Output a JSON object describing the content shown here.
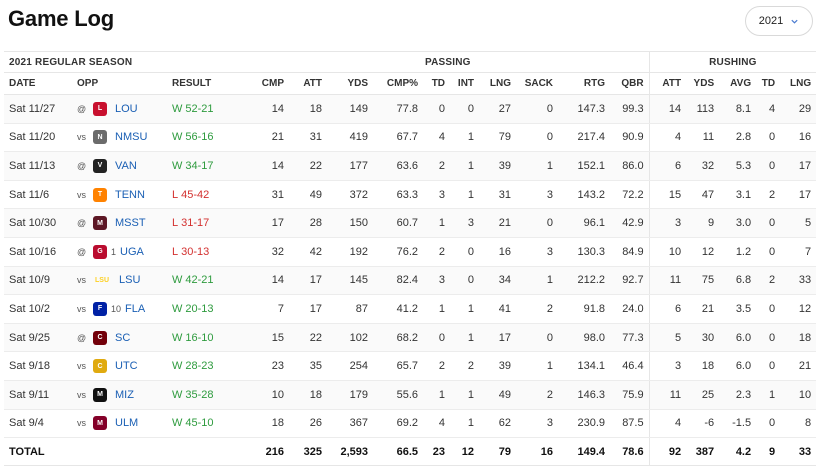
{
  "page": {
    "title": "Game Log",
    "season_select": "2021"
  },
  "table": {
    "section_label": "2021 REGULAR SEASON",
    "group_passing": "PASSING",
    "group_rushing": "RUSHING",
    "columns": {
      "date": "DATE",
      "opp": "OPP",
      "result": "RESULT",
      "cmp": "CMP",
      "att": "ATT",
      "yds": "YDS",
      "cmp_pct": "CMP%",
      "td": "TD",
      "int": "INT",
      "lng": "LNG",
      "sack": "SACK",
      "rtg": "RTG",
      "qbr": "QBR",
      "r_att": "ATT",
      "r_yds": "YDS",
      "r_avg": "AVG",
      "r_td": "TD",
      "r_lng": "LNG"
    },
    "rows": [
      {
        "date": "Sat 11/27",
        "prefix": "@",
        "rank": "",
        "opp": "LOU",
        "logo_color": "#c8102e",
        "logo_text": "L",
        "wl": "W",
        "score": "52-21",
        "cmp": "14",
        "att": "18",
        "yds": "149",
        "pct": "77.8",
        "td": "0",
        "int": "0",
        "lng": "27",
        "sack": "0",
        "rtg": "147.3",
        "qbr": "99.3",
        "ratt": "14",
        "ryds": "113",
        "ravg": "8.1",
        "rtd": "4",
        "rlng": "29"
      },
      {
        "date": "Sat 11/20",
        "prefix": "vs",
        "rank": "",
        "opp": "NMSU",
        "logo_color": "#6b6b6b",
        "logo_text": "N",
        "wl": "W",
        "score": "56-16",
        "cmp": "21",
        "att": "31",
        "yds": "419",
        "pct": "67.7",
        "td": "4",
        "int": "1",
        "lng": "79",
        "sack": "0",
        "rtg": "217.4",
        "qbr": "90.9",
        "ratt": "4",
        "ryds": "11",
        "ravg": "2.8",
        "rtd": "0",
        "rlng": "16"
      },
      {
        "date": "Sat 11/13",
        "prefix": "@",
        "rank": "",
        "opp": "VAN",
        "logo_color": "#222222",
        "logo_text": "V",
        "wl": "W",
        "score": "34-17",
        "cmp": "14",
        "att": "22",
        "yds": "177",
        "pct": "63.6",
        "td": "2",
        "int": "1",
        "lng": "39",
        "sack": "1",
        "rtg": "152.1",
        "qbr": "86.0",
        "ratt": "6",
        "ryds": "32",
        "ravg": "5.3",
        "rtd": "0",
        "rlng": "17"
      },
      {
        "date": "Sat 11/6",
        "prefix": "vs",
        "rank": "",
        "opp": "TENN",
        "logo_color": "#ff8200",
        "logo_text": "T",
        "wl": "L",
        "score": "45-42",
        "cmp": "31",
        "att": "49",
        "yds": "372",
        "pct": "63.3",
        "td": "3",
        "int": "1",
        "lng": "31",
        "sack": "3",
        "rtg": "143.2",
        "qbr": "72.2",
        "ratt": "15",
        "ryds": "47",
        "ravg": "3.1",
        "rtd": "2",
        "rlng": "17"
      },
      {
        "date": "Sat 10/30",
        "prefix": "@",
        "rank": "",
        "opp": "MSST",
        "logo_color": "#5d1725",
        "logo_text": "M",
        "wl": "L",
        "score": "31-17",
        "cmp": "17",
        "att": "28",
        "yds": "150",
        "pct": "60.7",
        "td": "1",
        "int": "3",
        "lng": "21",
        "sack": "0",
        "rtg": "96.1",
        "qbr": "42.9",
        "ratt": "3",
        "ryds": "9",
        "ravg": "3.0",
        "rtd": "0",
        "rlng": "5"
      },
      {
        "date": "Sat 10/16",
        "prefix": "@",
        "rank": "1",
        "opp": "UGA",
        "logo_color": "#ba0c2f",
        "logo_text": "G",
        "wl": "L",
        "score": "30-13",
        "cmp": "32",
        "att": "42",
        "yds": "192",
        "pct": "76.2",
        "td": "2",
        "int": "0",
        "lng": "16",
        "sack": "3",
        "rtg": "130.3",
        "qbr": "84.9",
        "ratt": "10",
        "ryds": "12",
        "ravg": "1.2",
        "rtd": "0",
        "rlng": "7"
      },
      {
        "date": "Sat 10/9",
        "prefix": "vs",
        "rank": "",
        "opp": "LSU",
        "logo_color": "#fdd023",
        "logo_text": "LSU",
        "wl": "W",
        "score": "42-21",
        "cmp": "14",
        "att": "17",
        "yds": "145",
        "pct": "82.4",
        "td": "3",
        "int": "0",
        "lng": "34",
        "sack": "1",
        "rtg": "212.2",
        "qbr": "92.7",
        "ratt": "11",
        "ryds": "75",
        "ravg": "6.8",
        "rtd": "2",
        "rlng": "33"
      },
      {
        "date": "Sat 10/2",
        "prefix": "vs",
        "rank": "10",
        "opp": "FLA",
        "logo_color": "#0021a5",
        "logo_text": "F",
        "wl": "W",
        "score": "20-13",
        "cmp": "7",
        "att": "17",
        "yds": "87",
        "pct": "41.2",
        "td": "1",
        "int": "1",
        "lng": "41",
        "sack": "2",
        "rtg": "91.8",
        "qbr": "24.0",
        "ratt": "6",
        "ryds": "21",
        "ravg": "3.5",
        "rtd": "0",
        "rlng": "12"
      },
      {
        "date": "Sat 9/25",
        "prefix": "@",
        "rank": "",
        "opp": "SC",
        "logo_color": "#73000a",
        "logo_text": "C",
        "wl": "W",
        "score": "16-10",
        "cmp": "15",
        "att": "22",
        "yds": "102",
        "pct": "68.2",
        "td": "0",
        "int": "1",
        "lng": "17",
        "sack": "0",
        "rtg": "98.0",
        "qbr": "77.3",
        "ratt": "5",
        "ryds": "30",
        "ravg": "6.0",
        "rtd": "0",
        "rlng": "18"
      },
      {
        "date": "Sat 9/18",
        "prefix": "vs",
        "rank": "",
        "opp": "UTC",
        "logo_color": "#e0aa0f",
        "logo_text": "C",
        "wl": "W",
        "score": "28-23",
        "cmp": "23",
        "att": "35",
        "yds": "254",
        "pct": "65.7",
        "td": "2",
        "int": "2",
        "lng": "39",
        "sack": "1",
        "rtg": "134.1",
        "qbr": "46.4",
        "ratt": "3",
        "ryds": "18",
        "ravg": "6.0",
        "rtd": "0",
        "rlng": "21"
      },
      {
        "date": "Sat 9/11",
        "prefix": "vs",
        "rank": "",
        "opp": "MIZ",
        "logo_color": "#111111",
        "logo_text": "M",
        "wl": "W",
        "score": "35-28",
        "cmp": "10",
        "att": "18",
        "yds": "179",
        "pct": "55.6",
        "td": "1",
        "int": "1",
        "lng": "49",
        "sack": "2",
        "rtg": "146.3",
        "qbr": "75.9",
        "ratt": "11",
        "ryds": "25",
        "ravg": "2.3",
        "rtd": "1",
        "rlng": "10"
      },
      {
        "date": "Sat 9/4",
        "prefix": "vs",
        "rank": "",
        "opp": "ULM",
        "logo_color": "#840029",
        "logo_text": "M",
        "wl": "W",
        "score": "45-10",
        "cmp": "18",
        "att": "26",
        "yds": "367",
        "pct": "69.2",
        "td": "4",
        "int": "1",
        "lng": "62",
        "sack": "3",
        "rtg": "230.9",
        "qbr": "87.5",
        "ratt": "4",
        "ryds": "-6",
        "ravg": "-1.5",
        "rtd": "0",
        "rlng": "8"
      }
    ],
    "total": {
      "label": "TOTAL",
      "cmp": "216",
      "att": "325",
      "yds": "2,593",
      "pct": "66.5",
      "td": "23",
      "int": "12",
      "lng": "79",
      "sack": "16",
      "rtg": "149.4",
      "qbr": "78.6",
      "ratt": "92",
      "ryds": "387",
      "ravg": "4.2",
      "rtd": "9",
      "rlng": "33"
    }
  },
  "colors": {
    "win": "#2e9b3e",
    "loss": "#d3302f",
    "link": "#1a5fb4"
  }
}
